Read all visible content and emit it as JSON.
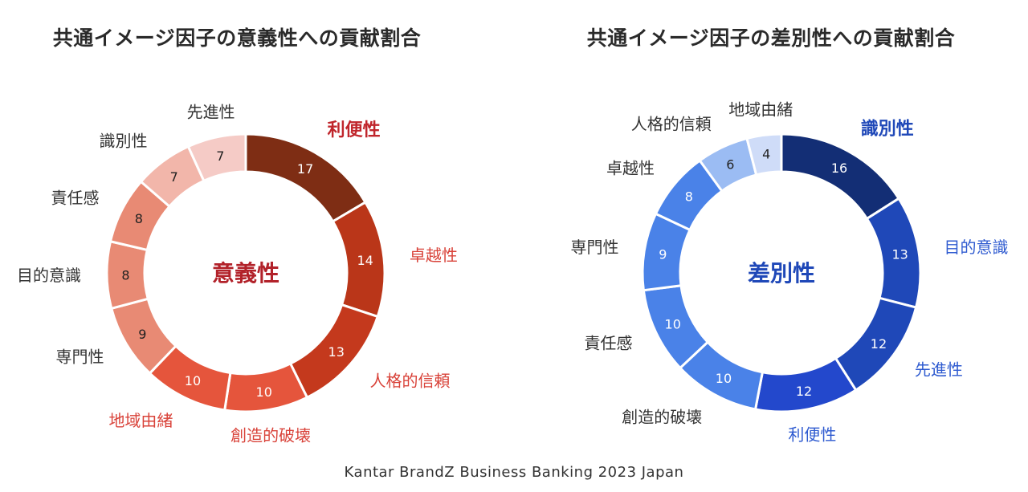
{
  "footer": "Kantar BrandZ Business Banking 2023 Japan",
  "chart_data": [
    {
      "type": "pie",
      "title": "共通イメージ因子の意義性への貢献割合",
      "center_label": "意義性",
      "center_color": "#b2222a",
      "segments": [
        {
          "label": "利便性",
          "value": 17,
          "color": "#7e2d14",
          "label_color": "#c0262c",
          "bold": true
        },
        {
          "label": "卓越性",
          "value": 14,
          "color": "#ba3619",
          "label_color": "#d9433a",
          "bold": false
        },
        {
          "label": "人格的信頼",
          "value": 13,
          "color": "#c4391d",
          "label_color": "#d9433a",
          "bold": false
        },
        {
          "label": "創造的破壊",
          "value": 10,
          "color": "#e5553c",
          "label_color": "#d9433a",
          "bold": false
        },
        {
          "label": "地域由緒",
          "value": 10,
          "color": "#e5553c",
          "label_color": "#d9433a",
          "bold": false
        },
        {
          "label": "専門性",
          "value": 9,
          "color": "#e88a74",
          "label_color": "#333333",
          "bold": false
        },
        {
          "label": "目的意識",
          "value": 8,
          "color": "#e88a74",
          "label_color": "#333333",
          "bold": false
        },
        {
          "label": "責任感",
          "value": 8,
          "color": "#e88a74",
          "label_color": "#333333",
          "bold": false
        },
        {
          "label": "識別性",
          "value": 7,
          "color": "#f2b6aa",
          "label_color": "#333333",
          "bold": false
        },
        {
          "label": "先進性",
          "value": 7,
          "color": "#f5cbc6",
          "label_color": "#333333",
          "bold": false
        }
      ]
    },
    {
      "type": "pie",
      "title": "共通イメージ因子の差別性への貢献割合",
      "center_label": "差別性",
      "center_color": "#1f48b8",
      "segments": [
        {
          "label": "識別性",
          "value": 16,
          "color": "#132e75",
          "label_color": "#1f48b8",
          "bold": true
        },
        {
          "label": "目的意識",
          "value": 13,
          "color": "#1f48b8",
          "label_color": "#2f5bd0",
          "bold": false
        },
        {
          "label": "先進性",
          "value": 12,
          "color": "#1f48b8",
          "label_color": "#2f5bd0",
          "bold": false
        },
        {
          "label": "利便性",
          "value": 12,
          "color": "#2348cc",
          "label_color": "#2f5bd0",
          "bold": false
        },
        {
          "label": "創造的破壊",
          "value": 10,
          "color": "#4a82e8",
          "label_color": "#333333",
          "bold": false
        },
        {
          "label": "責任感",
          "value": 10,
          "color": "#4a82e8",
          "label_color": "#333333",
          "bold": false
        },
        {
          "label": "専門性",
          "value": 9,
          "color": "#4a82e8",
          "label_color": "#333333",
          "bold": false
        },
        {
          "label": "卓越性",
          "value": 8,
          "color": "#4a82e8",
          "label_color": "#333333",
          "bold": false
        },
        {
          "label": "人格的信頼",
          "value": 6,
          "color": "#9bbcf3",
          "label_color": "#333333",
          "bold": false
        },
        {
          "label": "地域由緒",
          "value": 4,
          "color": "#cfdcf8",
          "label_color": "#333333",
          "bold": false
        }
      ]
    }
  ]
}
